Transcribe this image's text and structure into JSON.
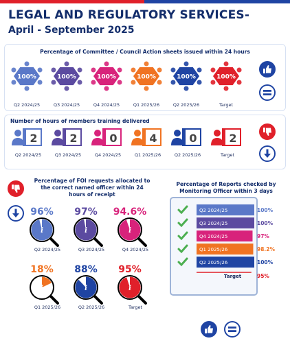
{
  "header": {
    "title_line1": "LEGAL AND REGULATORY SERVICES-",
    "title_line2": "April - September 2025"
  },
  "committee": {
    "title": "Percentage of Committee / Council Action sheets issued within 24 hours",
    "items": [
      {
        "label": "Q2 2024/25",
        "value": "100%",
        "color": "#5a78c8"
      },
      {
        "label": "Q3 2024/25",
        "value": "100%",
        "color": "#5b4aa0"
      },
      {
        "label": "Q4 2024/25",
        "value": "100%",
        "color": "#d8237b"
      },
      {
        "label": "Q1 2025/26",
        "value": "100%",
        "color": "#f07322"
      },
      {
        "label": "Q2 2025/26",
        "value": "100%",
        "color": "#1f44a3"
      },
      {
        "label": "Target",
        "value": "100%",
        "color": "#e0202a"
      }
    ]
  },
  "training": {
    "title": "Number of hours of members training delivered",
    "items": [
      {
        "label": "Q2 2024/25",
        "value": "2",
        "color": "#5a78c8"
      },
      {
        "label": "Q3 2024/25",
        "value": "2",
        "color": "#5b4aa0"
      },
      {
        "label": "Q4 2024/25",
        "value": "0",
        "color": "#d8237b"
      },
      {
        "label": "Q1 2025/26",
        "value": "4",
        "color": "#f07322"
      },
      {
        "label": "Q2 2025/26",
        "value": "0",
        "color": "#1f44a3"
      },
      {
        "label": "Target",
        "value": "2",
        "color": "#e0202a"
      }
    ]
  },
  "foi": {
    "title": "Percentage of FOI requests allocated to the correct named officer within 24 hours of receipt",
    "items": [
      {
        "label": "Q2 2024/25",
        "value": "96%",
        "fraction": 0.96,
        "color": "#5a78c8"
      },
      {
        "label": "Q3 2024/25",
        "value": "97%",
        "fraction": 0.97,
        "color": "#5b4aa0"
      },
      {
        "label": "Q4 2024/25",
        "value": "94.6%",
        "fraction": 0.946,
        "color": "#d8237b"
      },
      {
        "label": "Q1 2025/26",
        "value": "18%",
        "fraction": 0.18,
        "color": "#f07322"
      },
      {
        "label": "Q2 2025/26",
        "value": "88%",
        "fraction": 0.88,
        "color": "#1f44a3"
      },
      {
        "label": "Target",
        "value": "95%",
        "fraction": 0.95,
        "color": "#e0202a"
      }
    ]
  },
  "reports": {
    "title": "Percentage of Reports checked by Monitoring Officer within 3 days",
    "items": [
      {
        "label": "Q2 2024/25",
        "value": "100%",
        "fraction": 1.0,
        "color": "#5a78c8"
      },
      {
        "label": "Q3 2024/25",
        "value": "100%",
        "fraction": 1.0,
        "color": "#5b4aa0"
      },
      {
        "label": "Q4 2024/25",
        "value": "97%",
        "fraction": 0.97,
        "color": "#d8237b"
      },
      {
        "label": "Q1 2025/26",
        "value": "98.2%",
        "fraction": 0.982,
        "color": "#f07322"
      },
      {
        "label": "Q2 2025/26",
        "value": "100%",
        "fraction": 1.0,
        "color": "#1f44a3"
      },
      {
        "label": "Target",
        "value": "95%",
        "fraction": 0.95,
        "color": "#e0202a"
      }
    ]
  },
  "icons": {
    "committee_side_top": "thumbs-up-icon",
    "committee_side_bottom": "equals-icon",
    "training_side_top": "thumbs-down-icon",
    "training_side_bottom": "down-arrow-icon",
    "foi_side_top": "thumbs-down-icon",
    "foi_side_bottom": "down-arrow-icon",
    "footer_left": "thumbs-up-icon",
    "footer_right": "equals-icon"
  },
  "colors": {
    "navy": "#132d6b",
    "red": "#e0202a",
    "blue": "#1f44a3",
    "green": "#4caf50"
  }
}
